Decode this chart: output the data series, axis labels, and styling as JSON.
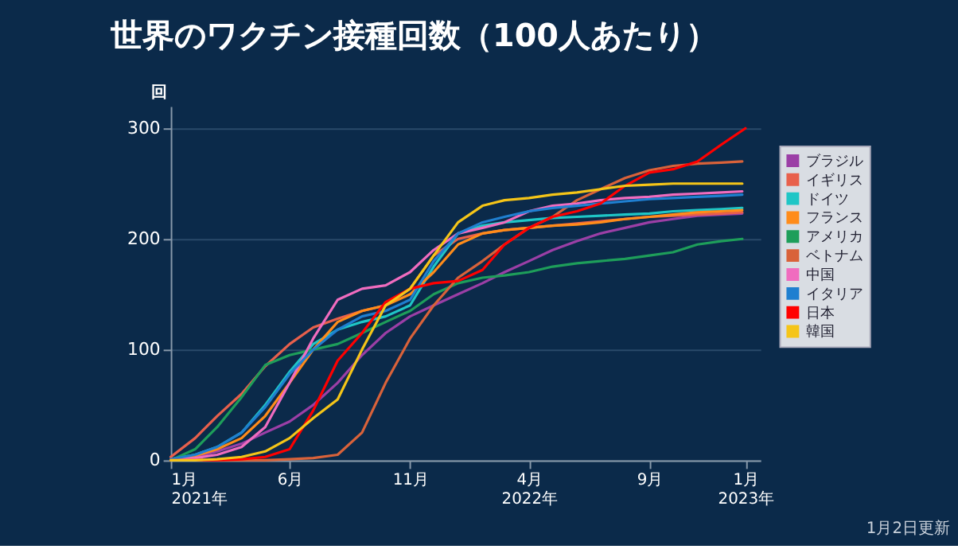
{
  "chart_data": {
    "type": "line",
    "title": "世界のワクチン接種回数（100人あたり）",
    "ylabel": "回",
    "annotations": [
      "1月2日更新"
    ],
    "x": [
      "2021-01-01",
      "2021-02-01",
      "2021-03-01",
      "2021-04-01",
      "2021-05-01",
      "2021-06-01",
      "2021-07-01",
      "2021-08-01",
      "2021-09-01",
      "2021-10-01",
      "2021-11-01",
      "2021-12-01",
      "2022-01-01",
      "2022-02-01",
      "2022-03-01",
      "2022-04-01",
      "2022-05-01",
      "2022-06-01",
      "2022-07-01",
      "2022-08-01",
      "2022-09-01",
      "2022-10-01",
      "2022-11-01",
      "2022-12-01",
      "2022-12-28"
    ],
    "xlim": [
      "2021-01-01",
      "2023-01-20"
    ],
    "xticks": [
      {
        "value": "2021-01-01",
        "label": "1月\n2021年"
      },
      {
        "value": "2021-06-01",
        "label": "6月"
      },
      {
        "value": "2021-11-01",
        "label": "11月"
      },
      {
        "value": "2022-04-01",
        "label": "4月\n2022年"
      },
      {
        "value": "2022-09-01",
        "label": "9月"
      },
      {
        "value": "2023-01-01",
        "label": "1月\n2023年"
      }
    ],
    "ylim": [
      0,
      320
    ],
    "yticks": [
      0,
      100,
      200,
      300
    ],
    "grid": "y",
    "legend": "right",
    "series": [
      {
        "name": "ブラジル",
        "color": "#9b3fa6",
        "values": [
          0,
          3,
          8,
          15,
          25,
          35,
          50,
          70,
          95,
          115,
          130,
          140,
          150,
          160,
          170,
          180,
          190,
          198,
          205,
          210,
          215,
          218,
          221,
          222,
          223
        ]
      },
      {
        "name": "イギリス",
        "color": "#e8604c",
        "values": [
          3,
          20,
          40,
          60,
          85,
          105,
          120,
          128,
          135,
          140,
          155,
          185,
          200,
          205,
          208,
          210,
          212,
          214,
          216,
          218,
          220,
          221,
          222,
          223,
          224
        ]
      },
      {
        "name": "ドイツ",
        "color": "#1fc6c6",
        "values": [
          1,
          5,
          12,
          25,
          50,
          80,
          105,
          118,
          125,
          130,
          140,
          175,
          205,
          212,
          215,
          217,
          219,
          220,
          221,
          222,
          223,
          225,
          226,
          227,
          228
        ]
      },
      {
        "name": "フランス",
        "color": "#ff8c1a",
        "values": [
          1,
          4,
          10,
          20,
          40,
          70,
          100,
          125,
          135,
          140,
          150,
          170,
          195,
          205,
          208,
          210,
          212,
          213,
          215,
          218,
          220,
          222,
          224,
          225,
          226
        ]
      },
      {
        "name": "アメリカ",
        "color": "#1e9e5a",
        "values": [
          0,
          10,
          30,
          57,
          86,
          95,
          100,
          105,
          115,
          125,
          135,
          150,
          160,
          165,
          167,
          170,
          175,
          178,
          180,
          182,
          185,
          188,
          195,
          198,
          200
        ]
      },
      {
        "name": "ベトナム",
        "color": "#d9623a",
        "values": [
          0,
          0,
          0,
          0,
          0,
          1,
          2,
          5,
          25,
          70,
          110,
          140,
          165,
          180,
          195,
          210,
          220,
          235,
          245,
          255,
          262,
          266,
          268,
          269,
          270
        ]
      },
      {
        "name": "中国",
        "color": "#f06cbf",
        "values": [
          1,
          2,
          5,
          12,
          30,
          70,
          110,
          145,
          155,
          158,
          170,
          190,
          205,
          210,
          215,
          225,
          230,
          232,
          235,
          237,
          238,
          240,
          241,
          242,
          243
        ]
      },
      {
        "name": "イタリア",
        "color": "#1f7fd0",
        "values": [
          1,
          5,
          12,
          25,
          48,
          78,
          100,
          118,
          130,
          135,
          145,
          180,
          205,
          215,
          220,
          225,
          228,
          230,
          232,
          234,
          236,
          237,
          238,
          239,
          240
        ]
      },
      {
        "name": "日本",
        "color": "#ff0000",
        "x": [
          "2021-01-01",
          "2021-02-01",
          "2021-03-01",
          "2021-04-01",
          "2021-05-01",
          "2021-06-01",
          "2021-07-01",
          "2021-08-01",
          "2021-09-01",
          "2021-10-01",
          "2021-11-01",
          "2021-12-01",
          "2022-01-01",
          "2022-02-01",
          "2022-03-01",
          "2022-04-01",
          "2022-05-01",
          "2022-06-01",
          "2022-07-01",
          "2022-08-01",
          "2022-09-01",
          "2022-10-01",
          "2022-11-01",
          "2022-12-01",
          "2023-01-01"
        ],
        "values": [
          0,
          0,
          0,
          1,
          3,
          10,
          45,
          90,
          115,
          143,
          155,
          160,
          162,
          172,
          195,
          210,
          220,
          225,
          232,
          248,
          260,
          263,
          270,
          285,
          300
        ]
      },
      {
        "name": "韓国",
        "color": "#f5c518",
        "values": [
          0,
          0,
          1,
          3,
          8,
          20,
          38,
          55,
          100,
          140,
          155,
          185,
          215,
          230,
          235,
          237,
          240,
          242,
          245,
          248,
          249,
          250,
          250,
          250,
          250
        ]
      }
    ]
  }
}
